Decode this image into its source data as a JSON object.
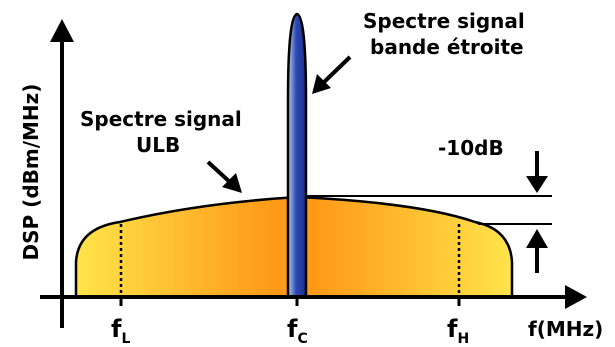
{
  "axes": {
    "y_label": "DSP (dBm/MHz)",
    "x_label": "f(MHz)"
  },
  "frequencies": {
    "low": {
      "base": "f",
      "sub": "L"
    },
    "center": {
      "base": "f",
      "sub": "C"
    },
    "high": {
      "base": "f",
      "sub": "H"
    }
  },
  "narrowband_label": {
    "line1": "Spectre signal",
    "line2": "bande étroite"
  },
  "ulb_label": {
    "line1": "Spectre signal",
    "line2": "ULB"
  },
  "attenuation_label": "-10dB",
  "colors": {
    "ulb_edge": "#ffe44a",
    "ulb_center": "#ff9a18",
    "narrow_light": "#bccdf0",
    "narrow_dark": "#2e49b4"
  }
}
